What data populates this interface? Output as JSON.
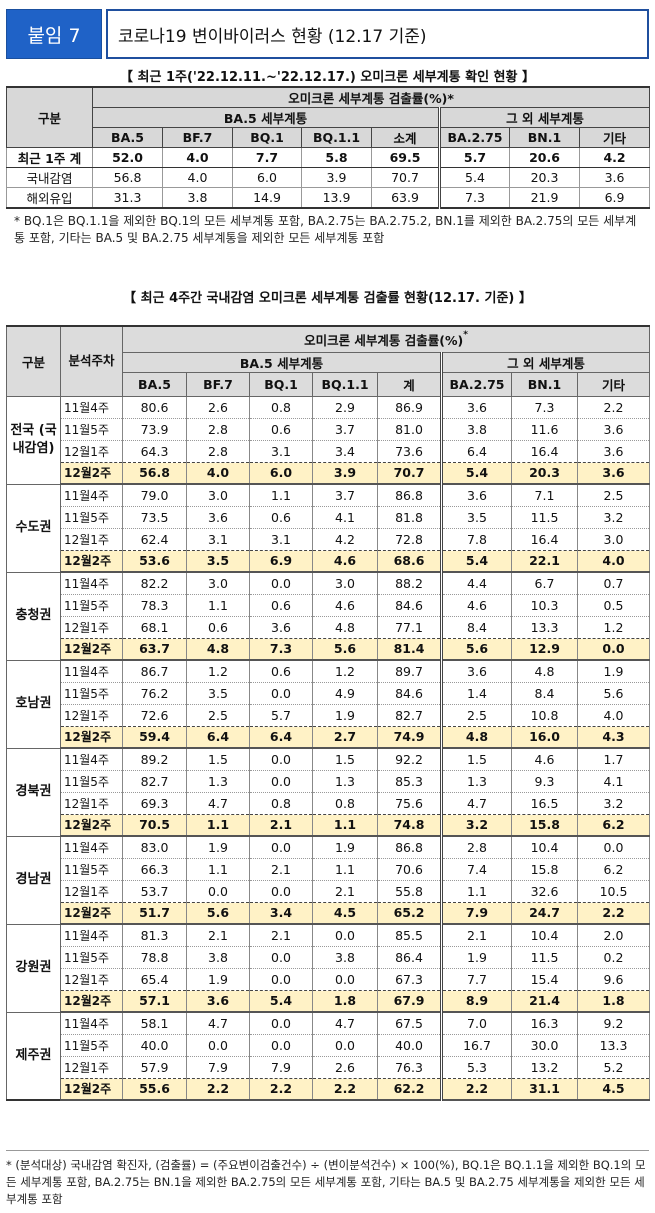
{
  "header": {
    "tag": "붙임 7",
    "title": "코로나19 변이바이러스 현황 (12.17 기준)"
  },
  "table1": {
    "caption": "【 최근 1주('22.12.11.~'22.12.17.) 오미크론 세부계통 확인 현황 】",
    "corner": "구분",
    "group_header": "오미크론 세부계통 검출률(%)*",
    "sub_group_a": "BA.5 세부계통",
    "sub_group_b": "그 외 세부계통",
    "columns": [
      "BA.5",
      "BF.7",
      "BQ.1",
      "BQ.1.1",
      "소계",
      "BA.2.75",
      "BN.1",
      "기타"
    ],
    "rows": [
      {
        "label": "최근 1주 계",
        "values": [
          "52.0",
          "4.0",
          "7.7",
          "5.8",
          "69.5",
          "5.7",
          "20.6",
          "4.2"
        ]
      },
      {
        "label": "국내감염",
        "values": [
          "56.8",
          "4.0",
          "6.0",
          "3.9",
          "70.7",
          "5.4",
          "20.3",
          "3.6"
        ]
      },
      {
        "label": "해외유입",
        "values": [
          "31.3",
          "3.8",
          "14.9",
          "13.9",
          "63.9",
          "7.3",
          "21.9",
          "6.9"
        ]
      }
    ],
    "note": "* BQ.1은 BQ.1.1을 제외한 BQ.1의 모든 세부계통 포함, BA.2.75는 BA.2.75.2, BN.1를 제외한 BA.2.75의 모든 세부계통 포함, 기타는 BA.5 및 BA.2.75 세부계통을 제외한 모든 세부계통 포함"
  },
  "table2": {
    "caption": "【 최근 4주간 국내감염 오미크론 세부계통 검출률 현황(12.17. 기준) 】",
    "corner": "구분",
    "week_header": "분석주차",
    "group_header": "오미크론 세부계통 검출률(%)",
    "group_sup": "*",
    "sub_group_a": "BA.5 세부계통",
    "sub_group_b": "그 외 세부계통",
    "columns": [
      "BA.5",
      "BF.7",
      "BQ.1",
      "BQ.1.1",
      "계",
      "BA.2.75",
      "BN.1",
      "기타"
    ],
    "regions": [
      {
        "name": "전국 (국내감염)",
        "rows": [
          {
            "week": "11월4주",
            "values": [
              "80.6",
              "2.6",
              "0.8",
              "2.9",
              "86.9",
              "3.6",
              "7.3",
              "2.2"
            ]
          },
          {
            "week": "11월5주",
            "values": [
              "73.9",
              "2.8",
              "0.6",
              "3.7",
              "81.0",
              "3.8",
              "11.6",
              "3.6"
            ]
          },
          {
            "week": "12월1주",
            "values": [
              "64.3",
              "2.8",
              "3.1",
              "3.4",
              "73.6",
              "6.4",
              "16.4",
              "3.6"
            ]
          },
          {
            "week": "12월2주",
            "values": [
              "56.8",
              "4.0",
              "6.0",
              "3.9",
              "70.7",
              "5.4",
              "20.3",
              "3.6"
            ]
          }
        ]
      },
      {
        "name": "수도권",
        "rows": [
          {
            "week": "11월4주",
            "values": [
              "79.0",
              "3.0",
              "1.1",
              "3.7",
              "86.8",
              "3.6",
              "7.1",
              "2.5"
            ]
          },
          {
            "week": "11월5주",
            "values": [
              "73.5",
              "3.6",
              "0.6",
              "4.1",
              "81.8",
              "3.5",
              "11.5",
              "3.2"
            ]
          },
          {
            "week": "12월1주",
            "values": [
              "62.4",
              "3.1",
              "3.1",
              "4.2",
              "72.8",
              "7.8",
              "16.4",
              "3.0"
            ]
          },
          {
            "week": "12월2주",
            "values": [
              "53.6",
              "3.5",
              "6.9",
              "4.6",
              "68.6",
              "5.4",
              "22.1",
              "4.0"
            ]
          }
        ]
      },
      {
        "name": "충청권",
        "rows": [
          {
            "week": "11월4주",
            "values": [
              "82.2",
              "3.0",
              "0.0",
              "3.0",
              "88.2",
              "4.4",
              "6.7",
              "0.7"
            ]
          },
          {
            "week": "11월5주",
            "values": [
              "78.3",
              "1.1",
              "0.6",
              "4.6",
              "84.6",
              "4.6",
              "10.3",
              "0.5"
            ]
          },
          {
            "week": "12월1주",
            "values": [
              "68.1",
              "0.6",
              "3.6",
              "4.8",
              "77.1",
              "8.4",
              "13.3",
              "1.2"
            ]
          },
          {
            "week": "12월2주",
            "values": [
              "63.7",
              "4.8",
              "7.3",
              "5.6",
              "81.4",
              "5.6",
              "12.9",
              "0.0"
            ]
          }
        ]
      },
      {
        "name": "호남권",
        "rows": [
          {
            "week": "11월4주",
            "values": [
              "86.7",
              "1.2",
              "0.6",
              "1.2",
              "89.7",
              "3.6",
              "4.8",
              "1.9"
            ]
          },
          {
            "week": "11월5주",
            "values": [
              "76.2",
              "3.5",
              "0.0",
              "4.9",
              "84.6",
              "1.4",
              "8.4",
              "5.6"
            ]
          },
          {
            "week": "12월1주",
            "values": [
              "72.6",
              "2.5",
              "5.7",
              "1.9",
              "82.7",
              "2.5",
              "10.8",
              "4.0"
            ]
          },
          {
            "week": "12월2주",
            "values": [
              "59.4",
              "6.4",
              "6.4",
              "2.7",
              "74.9",
              "4.8",
              "16.0",
              "4.3"
            ]
          }
        ]
      },
      {
        "name": "경북권",
        "rows": [
          {
            "week": "11월4주",
            "values": [
              "89.2",
              "1.5",
              "0.0",
              "1.5",
              "92.2",
              "1.5",
              "4.6",
              "1.7"
            ]
          },
          {
            "week": "11월5주",
            "values": [
              "82.7",
              "1.3",
              "0.0",
              "1.3",
              "85.3",
              "1.3",
              "9.3",
              "4.1"
            ]
          },
          {
            "week": "12월1주",
            "values": [
              "69.3",
              "4.7",
              "0.8",
              "0.8",
              "75.6",
              "4.7",
              "16.5",
              "3.2"
            ]
          },
          {
            "week": "12월2주",
            "values": [
              "70.5",
              "1.1",
              "2.1",
              "1.1",
              "74.8",
              "3.2",
              "15.8",
              "6.2"
            ]
          }
        ]
      },
      {
        "name": "경남권",
        "rows": [
          {
            "week": "11월4주",
            "values": [
              "83.0",
              "1.9",
              "0.0",
              "1.9",
              "86.8",
              "2.8",
              "10.4",
              "0.0"
            ]
          },
          {
            "week": "11월5주",
            "values": [
              "66.3",
              "1.1",
              "2.1",
              "1.1",
              "70.6",
              "7.4",
              "15.8",
              "6.2"
            ]
          },
          {
            "week": "12월1주",
            "values": [
              "53.7",
              "0.0",
              "0.0",
              "2.1",
              "55.8",
              "1.1",
              "32.6",
              "10.5"
            ]
          },
          {
            "week": "12월2주",
            "values": [
              "51.7",
              "5.6",
              "3.4",
              "4.5",
              "65.2",
              "7.9",
              "24.7",
              "2.2"
            ]
          }
        ]
      },
      {
        "name": "강원권",
        "rows": [
          {
            "week": "11월4주",
            "values": [
              "81.3",
              "2.1",
              "2.1",
              "0.0",
              "85.5",
              "2.1",
              "10.4",
              "2.0"
            ]
          },
          {
            "week": "11월5주",
            "values": [
              "78.8",
              "3.8",
              "0.0",
              "3.8",
              "86.4",
              "1.9",
              "11.5",
              "0.2"
            ]
          },
          {
            "week": "12월1주",
            "values": [
              "65.4",
              "1.9",
              "0.0",
              "0.0",
              "67.3",
              "7.7",
              "15.4",
              "9.6"
            ]
          },
          {
            "week": "12월2주",
            "values": [
              "57.1",
              "3.6",
              "5.4",
              "1.8",
              "67.9",
              "8.9",
              "21.4",
              "1.8"
            ]
          }
        ]
      },
      {
        "name": "제주권",
        "rows": [
          {
            "week": "11월4주",
            "values": [
              "58.1",
              "4.7",
              "0.0",
              "4.7",
              "67.5",
              "7.0",
              "16.3",
              "9.2"
            ]
          },
          {
            "week": "11월5주",
            "values": [
              "40.0",
              "0.0",
              "0.0",
              "0.0",
              "40.0",
              "16.7",
              "30.0",
              "13.3"
            ]
          },
          {
            "week": "12월1주",
            "values": [
              "57.9",
              "7.9",
              "7.9",
              "2.6",
              "76.3",
              "5.3",
              "13.2",
              "5.2"
            ]
          },
          {
            "week": "12월2주",
            "values": [
              "55.6",
              "2.2",
              "2.2",
              "2.2",
              "62.2",
              "2.2",
              "31.1",
              "4.5"
            ]
          }
        ]
      }
    ],
    "footnote": "* (분석대상) 국내감염 확진자, (검출률) = (주요변이검출건수) ÷ (변이분석건수) × 100(%), BQ.1은 BQ.1.1을 제외한 BQ.1의 모든 세부계통 포함, BA.2.75는 BN.1을 제외한 BA.2.75의 모든 세부계통 포함, 기타는 BA.5 및 BA.2.75 세부계통을 제외한 모든 세부계통 포함"
  }
}
